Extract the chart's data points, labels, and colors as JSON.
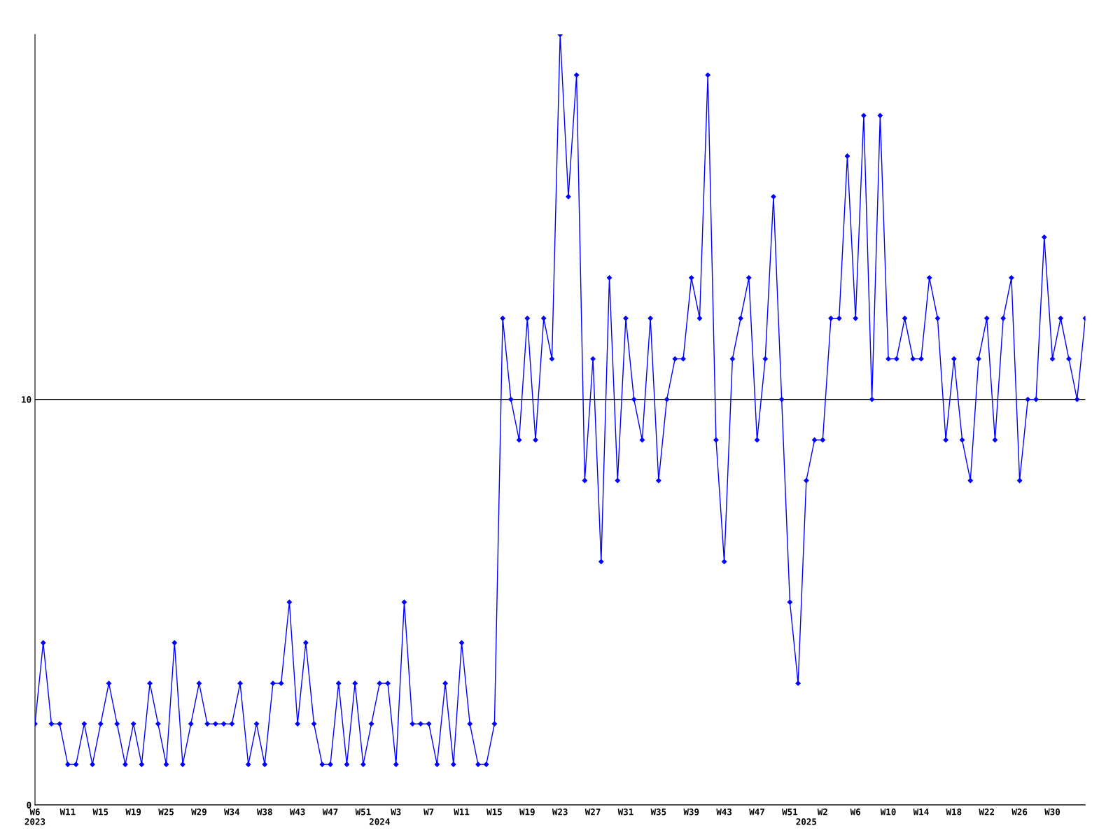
{
  "chart_data": {
    "type": "line",
    "categories": [
      "W6\n2023",
      null,
      null,
      null,
      "W11",
      null,
      null,
      null,
      "W15",
      null,
      null,
      null,
      "W19",
      null,
      null,
      null,
      "W25",
      null,
      null,
      null,
      "W29",
      null,
      null,
      null,
      "W34",
      null,
      null,
      null,
      "W38",
      null,
      null,
      null,
      "W43",
      null,
      null,
      null,
      "W47",
      null,
      null,
      null,
      "W51",
      null,
      "\n2024",
      null,
      "W3",
      null,
      null,
      null,
      "W7",
      null,
      null,
      null,
      "W11",
      null,
      null,
      null,
      "W15",
      null,
      null,
      null,
      "W19",
      null,
      null,
      null,
      "W23",
      null,
      null,
      null,
      "W27",
      null,
      null,
      null,
      "W31",
      null,
      null,
      null,
      "W35",
      null,
      null,
      null,
      "W39",
      null,
      null,
      null,
      "W43",
      null,
      null,
      null,
      "W47",
      null,
      null,
      null,
      "W51",
      null,
      "\n2025",
      null,
      "W2",
      null,
      null,
      null,
      "W6",
      null,
      null,
      null,
      "W10",
      null,
      null,
      null,
      "W14",
      null,
      null,
      null,
      "W18",
      null,
      null,
      null,
      "W22",
      null,
      null,
      null,
      "W26",
      null,
      null,
      null,
      "W30",
      null,
      null,
      null,
      null
    ],
    "series": [
      {
        "color": "#0000ff",
        "values": [
          2,
          4,
          2,
          2,
          1,
          1,
          2,
          1,
          2,
          3,
          2,
          1,
          2,
          1,
          3,
          2,
          1,
          4,
          1,
          2,
          3,
          2,
          2,
          2,
          2,
          3,
          1,
          2,
          1,
          3,
          3,
          5,
          2,
          4,
          2,
          1,
          1,
          3,
          1,
          3,
          1,
          2,
          3,
          3,
          1,
          5,
          2,
          2,
          2,
          1,
          3,
          1,
          4,
          2,
          1,
          1,
          2,
          12,
          10,
          9,
          12,
          9,
          12,
          11,
          19,
          15,
          18,
          8,
          11,
          6,
          13,
          8,
          12,
          10,
          9,
          12,
          8,
          10,
          11,
          11,
          13,
          12,
          18,
          9,
          6,
          11,
          12,
          13,
          9,
          11,
          15,
          10,
          5,
          3,
          8,
          9,
          9,
          12,
          12,
          16,
          12,
          17,
          10,
          17,
          11,
          11,
          12,
          11,
          11,
          13,
          12,
          9,
          11,
          9,
          8,
          11,
          12,
          9,
          12,
          13,
          8,
          10,
          10,
          14,
          11,
          12,
          11,
          10,
          12
        ]
      }
    ],
    "ylim": [
      0,
      19
    ],
    "yticks": [
      0,
      10
    ],
    "grid": "y",
    "marker": "diamond",
    "line_style": "solid"
  }
}
